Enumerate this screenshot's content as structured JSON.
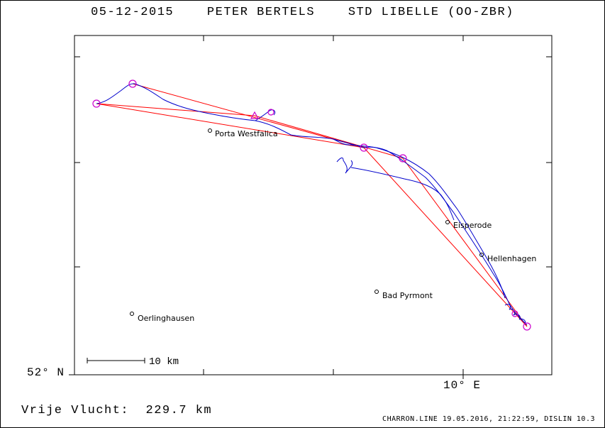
{
  "header": {
    "title": "05-12-2015    PETER BERTELS    STD LIBELLE (OO-ZBR)"
  },
  "axes": {
    "lat_label": "52° N",
    "lon_label": "10° E"
  },
  "scale_bar": {
    "label": "10 km"
  },
  "towns": [
    {
      "name": "Porta Westfalica"
    },
    {
      "name": "Eisperode"
    },
    {
      "name": "Hellenhagen"
    },
    {
      "name": "Bad Pyrmont"
    },
    {
      "name": "Oerlinghausen"
    }
  ],
  "footer": {
    "distance": "Vrije Vlucht:  229.7 km",
    "generated_by": "CHARRON.LINE 19.05.2016, 21:22:59, DISLIN 10.3"
  },
  "colors": {
    "track": "#0000cc",
    "task": "#ff0000",
    "turnpoint": "#cc00cc",
    "frame": "#000000"
  }
}
